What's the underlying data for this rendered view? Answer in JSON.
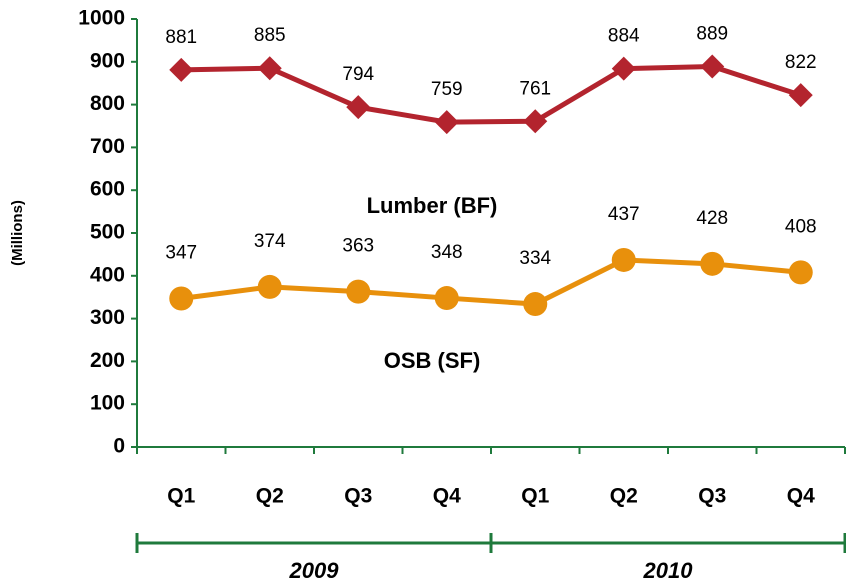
{
  "chart_data": {
    "type": "line",
    "y_label": "(Millions)",
    "categories": [
      "Q1",
      "Q2",
      "Q3",
      "Q4",
      "Q1",
      "Q2",
      "Q3",
      "Q4"
    ],
    "x_groups": [
      "2009",
      "2010"
    ],
    "series": [
      {
        "name": "Lumber (BF)",
        "color": "#b3242e",
        "marker": "diamond",
        "values": [
          881,
          885,
          794,
          759,
          761,
          884,
          889,
          822
        ]
      },
      {
        "name": "OSB (SF)",
        "color": "#e8900c",
        "marker": "circle",
        "values": [
          347,
          374,
          363,
          348,
          334,
          437,
          428,
          408
        ]
      }
    ],
    "ylim": [
      0,
      1000
    ],
    "yticks": [
      0,
      100,
      200,
      300,
      400,
      500,
      600,
      700,
      800,
      900,
      1000
    ],
    "axis_color": "#1f7a3c"
  }
}
